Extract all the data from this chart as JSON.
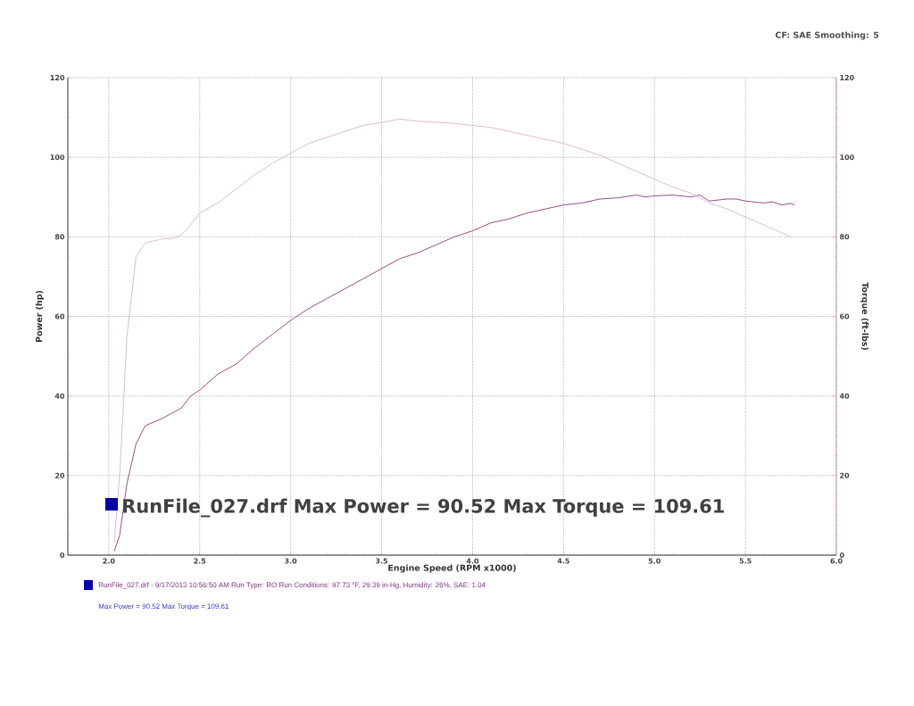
{
  "chart_data": {
    "type": "line",
    "xlabel": "Engine Speed (RPM x1000)",
    "ylabel": "Power (hp)",
    "y2label": "Torque (ft-lbs)",
    "xlim": [
      1.775,
      6.0
    ],
    "xticks": [
      {
        "value": 2,
        "label": "2.0"
      },
      2.5,
      {
        "value": 3,
        "label": "3.0"
      },
      3.5,
      {
        "value": 4,
        "label": "4.0"
      },
      4.5,
      {
        "value": 5,
        "label": "5.0"
      },
      5.5,
      {
        "value": 6,
        "label": "6.0"
      }
    ],
    "ylim": [
      0,
      120
    ],
    "yticks": [
      0,
      20,
      40,
      60,
      80,
      100,
      120
    ],
    "y2lim": [
      0,
      120
    ],
    "y2ticks": [
      0,
      20,
      40,
      60,
      80,
      100,
      120
    ],
    "grid": true,
    "marker": "none",
    "line_style": "solid",
    "annotations": [
      "CF: SAE  Smoothing: 5",
      "RunFile_027.drf Max Power = 90.52     Max Torque = 109.61",
      "RunFile_027.drf - 9/17/2013 10:56:50 AM  Run Type: RO  Run Conditions: 97.73 °F, 29.39 in-Hg,  Humidity: 26%, SAE: 1.04",
      "Max Power = 90.52  Max Torque = 109.61"
    ],
    "series": [
      {
        "color": "#8a3a78",
        "x": [
          2.03,
          2.06,
          2.1,
          2.15,
          2.2,
          2.3,
          2.4,
          2.45,
          2.5,
          2.6,
          2.7,
          2.8,
          2.9,
          3.0,
          3.1,
          3.2,
          3.3,
          3.4,
          3.5,
          3.6,
          3.7,
          3.8,
          3.9,
          4.0,
          4.1,
          4.2,
          4.3,
          4.4,
          4.5,
          4.6,
          4.7,
          4.8,
          4.9,
          4.95,
          5.0,
          5.1,
          5.2,
          5.25,
          5.3,
          5.4,
          5.45,
          5.5,
          5.6,
          5.65,
          5.7,
          5.75,
          5.77
        ],
        "values": [
          1,
          5,
          18,
          28,
          32.5,
          34.5,
          37,
          40,
          41.5,
          45.5,
          48,
          52,
          55.5,
          59,
          62,
          64.5,
          67,
          69.5,
          72,
          74.5,
          76,
          78,
          80,
          81.5,
          83.5,
          84.5,
          86,
          87,
          88,
          88.5,
          89.5,
          89.8,
          90.5,
          90,
          90.3,
          90.5,
          90,
          90.5,
          89,
          89.5,
          89.5,
          89,
          88.5,
          88.8,
          88,
          88.4,
          88
        ]
      },
      {
        "color": "#d8b4c8",
        "axis": "y2",
        "x": [
          2.03,
          2.06,
          2.1,
          2.15,
          2.2,
          2.3,
          2.35,
          2.4,
          2.45,
          2.5,
          2.6,
          2.7,
          2.8,
          2.9,
          3.0,
          3.1,
          3.2,
          3.3,
          3.4,
          3.5,
          3.6,
          3.7,
          3.8,
          3.9,
          4.0,
          4.1,
          4.2,
          4.3,
          4.4,
          4.5,
          4.6,
          4.7,
          4.8,
          4.9,
          5.0,
          5.1,
          5.2,
          5.3,
          5.4,
          5.5,
          5.6,
          5.7,
          5.75
        ],
        "values": [
          3,
          20,
          55,
          75,
          78.5,
          79.5,
          79.5,
          80.5,
          83,
          86,
          88.5,
          92,
          95.5,
          98.5,
          101,
          103.5,
          105,
          106.5,
          108,
          108.7,
          109.6,
          109,
          108.8,
          108.5,
          108,
          107.5,
          106.5,
          105.5,
          104.5,
          103.5,
          102,
          100.5,
          98.5,
          96.5,
          94.5,
          92.5,
          91,
          88.5,
          87,
          85,
          83,
          81,
          80
        ]
      }
    ]
  }
}
